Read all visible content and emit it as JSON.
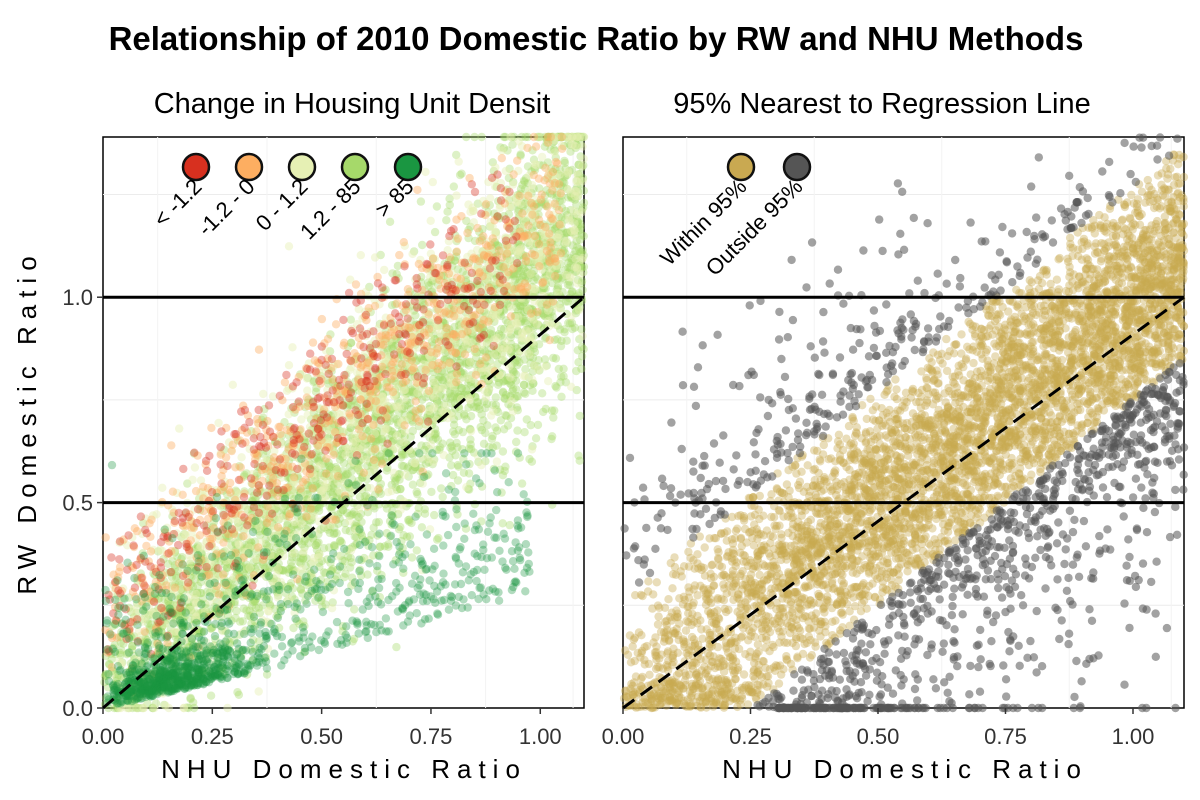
{
  "title": "Relationship of 2010 Domestic Ratio by RW and NHU Methods",
  "xlabel": "NHU Domestic Ratio",
  "ylabel": "RW Domestic Ratio",
  "chart_data": [
    {
      "type": "scatter",
      "subtitle": "Change in Housing Unit Densit",
      "xlabel": "NHU Domestic Ratio",
      "ylabel": "RW Domestic Ratio",
      "xlim": [
        0,
        1.1
      ],
      "ylim": [
        0,
        1.39
      ],
      "x_ticks": [
        0,
        0.25,
        0.5,
        0.75,
        1.0
      ],
      "x_tick_labels": [
        "0.00",
        "0.25",
        "0.50",
        "0.75",
        "1.00"
      ],
      "y_ticks": [
        0,
        0.5,
        1.0
      ],
      "y_tick_labels": [
        "0.0",
        "0.5",
        "1.0"
      ],
      "legend_placement": "top-left inside",
      "reference_lines": {
        "horizontal": [
          0.5,
          1.0
        ],
        "dashed_identity": [
          [
            0,
            0
          ],
          [
            1.1,
            1.0
          ]
        ]
      },
      "series": [
        {
          "name": "< -1.2",
          "color": "#d7301f",
          "approx_points": 350,
          "x_range": [
            0,
            0.95
          ],
          "y_range": [
            0.05,
            1.25
          ]
        },
        {
          "name": "-1.2 - 0",
          "color": "#fdae61",
          "approx_points": 650,
          "x_range": [
            0,
            1.05
          ],
          "y_range": [
            0.05,
            1.3
          ]
        },
        {
          "name": "0 - 1.2",
          "color": "#e6f0b4",
          "approx_points": 1100,
          "x_range": [
            0,
            1.1
          ],
          "y_range": [
            0,
            1.35
          ]
        },
        {
          "name": "1.2 - 85",
          "color": "#a6d96a",
          "approx_points": 3200,
          "x_range": [
            0,
            1.1
          ],
          "y_range": [
            0,
            1.39
          ]
        },
        {
          "name": "> 85",
          "color": "#1a9641",
          "approx_points": 1100,
          "x_range": [
            0,
            1.0
          ],
          "y_range": [
            0,
            0.6
          ]
        }
      ]
    },
    {
      "type": "scatter",
      "subtitle": "95% Nearest to Regression Line",
      "xlabel": "NHU Domestic Ratio",
      "ylabel": "",
      "xlim": [
        0,
        1.1
      ],
      "ylim": [
        0,
        1.39
      ],
      "x_ticks": [
        0,
        0.25,
        0.5,
        0.75,
        1.0
      ],
      "x_tick_labels": [
        "0.00",
        "0.25",
        "0.50",
        "0.75",
        "1.00"
      ],
      "legend_placement": "top-left inside",
      "reference_lines": {
        "horizontal": [
          0.5,
          1.0
        ],
        "dashed_identity": [
          [
            0,
            0
          ],
          [
            1.1,
            1.0
          ]
        ]
      },
      "series": [
        {
          "name": "Within 95%",
          "color": "#c9a951",
          "approx_points": 5000,
          "band": "within 0.26 of the fitted line"
        },
        {
          "name": "Outside 95%",
          "color": "#555555",
          "approx_points": 700,
          "band": "beyond 0.26 of the fitted line"
        }
      ]
    }
  ]
}
